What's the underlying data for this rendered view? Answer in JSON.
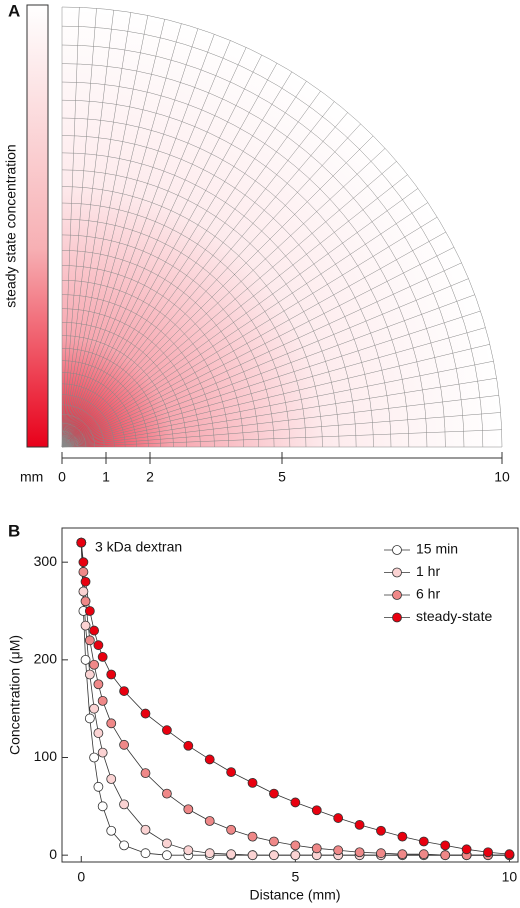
{
  "chart_data": [
    {
      "type": "mesh",
      "panel": "A",
      "colorbar_label": "steady state concentration",
      "scale_unit": "mm",
      "xlim": [
        0,
        10
      ],
      "xticks": [
        0,
        1,
        2,
        5,
        10
      ],
      "color": "#e8001a"
    },
    {
      "type": "line",
      "panel": "B",
      "annotation": "3 kDa dextran",
      "x_label": "Distance (mm)",
      "y_label": "Concentration (μM)",
      "x": [
        0,
        0.05,
        0.1,
        0.2,
        0.3,
        0.4,
        0.5,
        0.7,
        1,
        1.5,
        2,
        2.5,
        3,
        3.5,
        4,
        4.5,
        5,
        5.5,
        6,
        6.5,
        7,
        7.5,
        8,
        8.5,
        9,
        9.5,
        10
      ],
      "series": [
        {
          "name": "15 min",
          "color": "#ffffff",
          "values": [
            320,
            250,
            200,
            140,
            100,
            70,
            50,
            25,
            10,
            2,
            0,
            0,
            0,
            0,
            0,
            0,
            0,
            0,
            0,
            0,
            0,
            0,
            0,
            0,
            0,
            0,
            0
          ]
        },
        {
          "name": "1 hr",
          "color": "#fbd3d3",
          "values": [
            320,
            270,
            235,
            185,
            150,
            125,
            105,
            78,
            52,
            26,
            12,
            5,
            2,
            1,
            0,
            0,
            0,
            0,
            0,
            0,
            0,
            0,
            0,
            0,
            0,
            0,
            0
          ]
        },
        {
          "name": "6 hr",
          "color": "#ef8888",
          "values": [
            320,
            290,
            260,
            220,
            195,
            175,
            158,
            135,
            113,
            84,
            63,
            47,
            35,
            26,
            19,
            14,
            10,
            7,
            5,
            3,
            2,
            1,
            1,
            0,
            0,
            0,
            0
          ]
        },
        {
          "name": "steady-state",
          "color": "#e8000f",
          "values": [
            320,
            300,
            280,
            250,
            230,
            215,
            203,
            185,
            168,
            145,
            128,
            112,
            98,
            85,
            74,
            63,
            54,
            46,
            38,
            31,
            25,
            19,
            14,
            10,
            6,
            3,
            1
          ]
        }
      ],
      "xlim": [
        -0.45,
        10.2
      ],
      "ylim": [
        -7,
        335
      ],
      "xticks": [
        0,
        5,
        10
      ],
      "yticks": [
        0,
        100,
        200,
        300
      ]
    }
  ]
}
